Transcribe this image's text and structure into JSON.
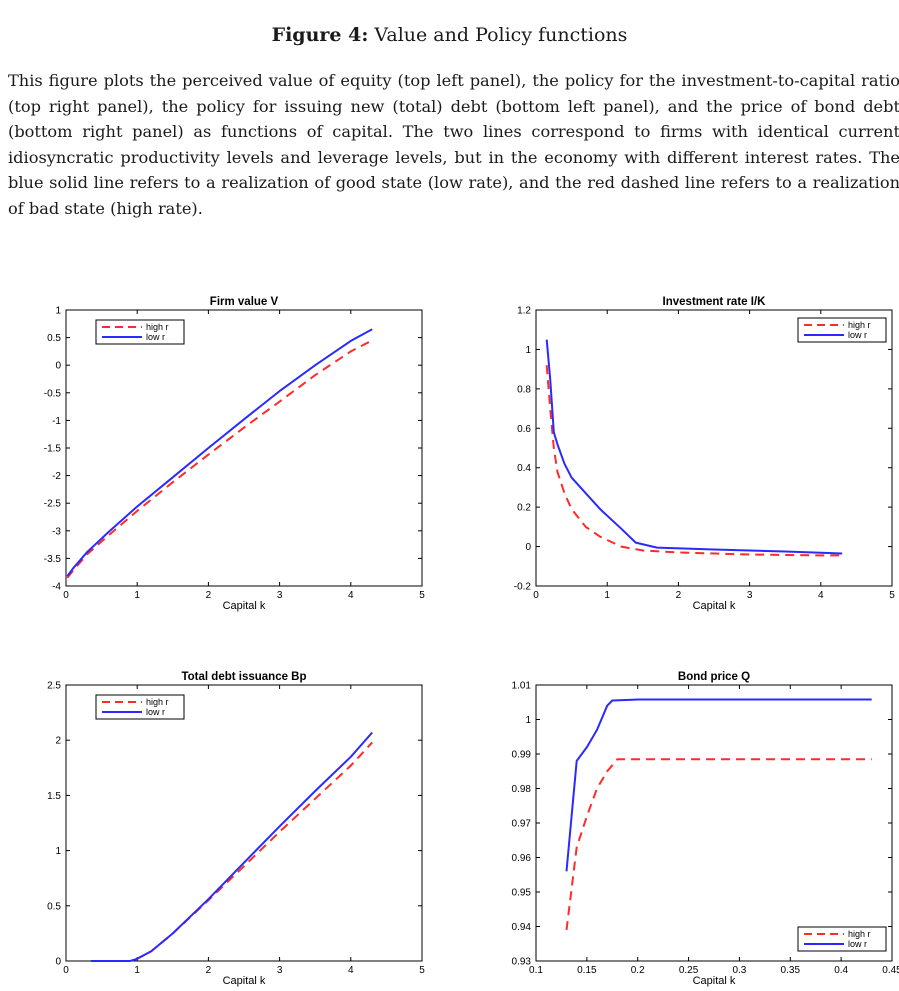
{
  "figure": {
    "number_label": "Figure 4:",
    "title": "Value and Policy functions",
    "caption": "This figure plots the perceived value of equity (top left panel), the policy for the investment-to-capital ratio (top right panel), the policy for issuing new (total) debt (bottom left panel), and the price of bond debt (bottom right panel) as functions of capital. The two lines correspond to firms with identical current idiosyncratic productivity levels and leverage levels, but in the economy with different interest rates. The blue solid line refers to a realization of good state (low rate), and the red dashed line refers to a realization of bad state (high rate)."
  },
  "colors": {
    "high_r": "#ff2a2a",
    "low_r": "#2a2aff",
    "axis": "#000000"
  },
  "chart_data": [
    {
      "type": "line",
      "title": "Firm value V",
      "xlabel": "Capital k",
      "ylabel": "",
      "xlim": [
        0,
        5
      ],
      "ylim": [
        -4,
        1
      ],
      "xticks": [
        0,
        1,
        2,
        3,
        4,
        5
      ],
      "xtick_labels": [
        "0",
        "1",
        "2",
        "3",
        "4",
        "5"
      ],
      "yticks": [
        -4,
        -3.5,
        -3,
        -2.5,
        -2,
        -1.5,
        -1,
        -0.5,
        0,
        0.5,
        1
      ],
      "ytick_labels": [
        "-4",
        "-3.5",
        "-3",
        "-2.5",
        "-2",
        "-1.5",
        "-1",
        "-0.5",
        "0",
        "0.5",
        "1"
      ],
      "legend_position": "top-left",
      "series": [
        {
          "name": "high r",
          "style": "dashed",
          "x": [
            0.02,
            0.1,
            0.3,
            0.6,
            1.0,
            1.5,
            2.0,
            2.5,
            3.0,
            3.5,
            4.0,
            4.3
          ],
          "y": [
            -3.85,
            -3.72,
            -3.42,
            -3.08,
            -2.64,
            -2.12,
            -1.62,
            -1.13,
            -0.66,
            -0.18,
            0.25,
            0.45
          ]
        },
        {
          "name": "low r",
          "style": "solid",
          "x": [
            0.02,
            0.1,
            0.3,
            0.6,
            1.0,
            1.5,
            2.0,
            2.5,
            3.0,
            3.5,
            4.0,
            4.3
          ],
          "y": [
            -3.82,
            -3.68,
            -3.38,
            -3.02,
            -2.56,
            -2.03,
            -1.5,
            -0.98,
            -0.47,
            0.0,
            0.44,
            0.65
          ]
        }
      ]
    },
    {
      "type": "line",
      "title": "Investment rate I/K",
      "xlabel": "Capital k",
      "ylabel": "",
      "xlim": [
        0,
        5
      ],
      "ylim": [
        -0.2,
        1.2
      ],
      "xticks": [
        0,
        1,
        2,
        3,
        4,
        5
      ],
      "xtick_labels": [
        "0",
        "1",
        "2",
        "3",
        "4",
        "5"
      ],
      "yticks": [
        -0.2,
        0,
        0.2,
        0.4,
        0.6,
        0.8,
        1,
        1.2
      ],
      "ytick_labels": [
        "-0.2",
        "0",
        "0.2",
        "0.4",
        "0.6",
        "0.8",
        "1",
        "1.2"
      ],
      "legend_position": "top-right",
      "series": [
        {
          "name": "high r",
          "style": "dashed",
          "x": [
            0.15,
            0.2,
            0.25,
            0.3,
            0.4,
            0.5,
            0.7,
            0.9,
            1.2,
            1.5,
            2.0,
            3.0,
            4.0,
            4.3
          ],
          "y": [
            0.92,
            0.7,
            0.5,
            0.38,
            0.27,
            0.19,
            0.1,
            0.05,
            0.0,
            -0.02,
            -0.03,
            -0.04,
            -0.045,
            -0.045
          ]
        },
        {
          "name": "low r",
          "style": "solid",
          "x": [
            0.15,
            0.2,
            0.25,
            0.3,
            0.4,
            0.5,
            0.7,
            0.9,
            1.2,
            1.4,
            1.7,
            2.5,
            3.5,
            4.3
          ],
          "y": [
            1.05,
            0.85,
            0.58,
            0.52,
            0.42,
            0.35,
            0.27,
            0.19,
            0.09,
            0.02,
            -0.005,
            -0.015,
            -0.025,
            -0.035
          ]
        }
      ]
    },
    {
      "type": "line",
      "title": "Total debt issuance Bp",
      "xlabel": "Capital k",
      "ylabel": "",
      "xlim": [
        0,
        5
      ],
      "ylim": [
        0,
        2.5
      ],
      "xticks": [
        0,
        1,
        2,
        3,
        4,
        5
      ],
      "xtick_labels": [
        "0",
        "1",
        "2",
        "3",
        "4",
        "5"
      ],
      "yticks": [
        0,
        0.5,
        1,
        1.5,
        2,
        2.5
      ],
      "ytick_labels": [
        "0",
        "0.5",
        "1",
        "1.5",
        "2",
        "2.5"
      ],
      "legend_position": "top-left",
      "series": [
        {
          "name": "high r",
          "style": "dashed",
          "x": [
            0.35,
            0.6,
            0.9,
            1.0,
            1.2,
            1.5,
            2.0,
            2.5,
            3.0,
            3.5,
            4.0,
            4.3
          ],
          "y": [
            0.0,
            0.0,
            0.0,
            0.02,
            0.09,
            0.25,
            0.55,
            0.86,
            1.17,
            1.47,
            1.77,
            1.98
          ]
        },
        {
          "name": "low r",
          "style": "solid",
          "x": [
            0.35,
            0.6,
            0.9,
            1.0,
            1.2,
            1.5,
            2.0,
            2.5,
            3.0,
            3.5,
            4.0,
            4.3
          ],
          "y": [
            0.0,
            0.0,
            0.0,
            0.02,
            0.09,
            0.25,
            0.56,
            0.89,
            1.22,
            1.54,
            1.85,
            2.07
          ]
        }
      ]
    },
    {
      "type": "line",
      "title": "Bond price Q",
      "xlabel": "Capital k",
      "ylabel": "",
      "xlim": [
        0.1,
        0.45
      ],
      "ylim": [
        0.93,
        1.01
      ],
      "xticks": [
        0.1,
        0.15,
        0.2,
        0.25,
        0.3,
        0.35,
        0.4,
        0.45
      ],
      "xtick_labels": [
        "0.1",
        "0.15",
        "0.2",
        "0.25",
        "0.3",
        "0.35",
        "0.4",
        "0.45"
      ],
      "yticks": [
        0.93,
        0.94,
        0.95,
        0.96,
        0.97,
        0.98,
        0.99,
        1,
        1.01
      ],
      "ytick_labels": [
        "0.93",
        "0.94",
        "0.95",
        "0.96",
        "0.97",
        "0.98",
        "0.99",
        "1",
        "1.01"
      ],
      "legend_position": "bottom-right",
      "series": [
        {
          "name": "high r",
          "style": "dashed",
          "x": [
            0.13,
            0.14,
            0.15,
            0.16,
            0.17,
            0.18,
            0.2,
            0.3,
            0.43
          ],
          "y": [
            0.939,
            0.963,
            0.972,
            0.98,
            0.985,
            0.9885,
            0.9885,
            0.9885,
            0.9885
          ]
        },
        {
          "name": "low r",
          "style": "solid",
          "x": [
            0.13,
            0.14,
            0.15,
            0.16,
            0.17,
            0.175,
            0.2,
            0.3,
            0.43
          ],
          "y": [
            0.956,
            0.988,
            0.992,
            0.997,
            1.004,
            1.0055,
            1.0058,
            1.0058,
            1.0058
          ]
        }
      ]
    }
  ]
}
